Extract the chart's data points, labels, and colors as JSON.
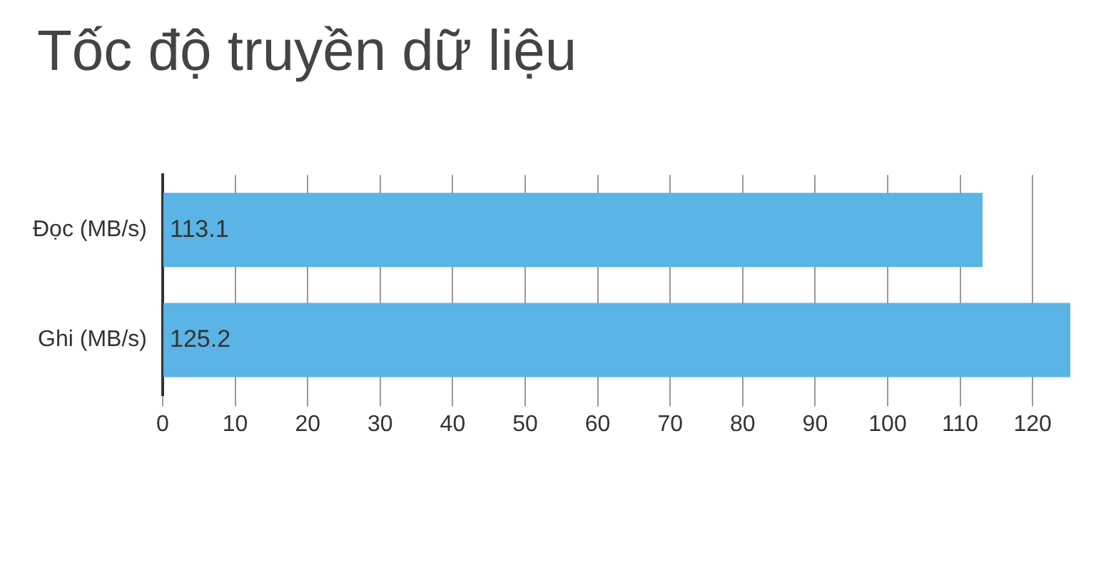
{
  "chart_data": {
    "type": "bar",
    "orientation": "horizontal",
    "title": "Tốc độ truyền dữ liệu",
    "categories": [
      "Đọc (MB/s)",
      "Ghi (MB/s)"
    ],
    "values": [
      113.1,
      125.2
    ],
    "color": "#5ab4e5",
    "xlim": [
      0,
      125.2
    ],
    "xticks": [
      0,
      10,
      20,
      30,
      40,
      50,
      60,
      70,
      80,
      90,
      100,
      110,
      120
    ],
    "grid": "x",
    "data_labels": true
  }
}
